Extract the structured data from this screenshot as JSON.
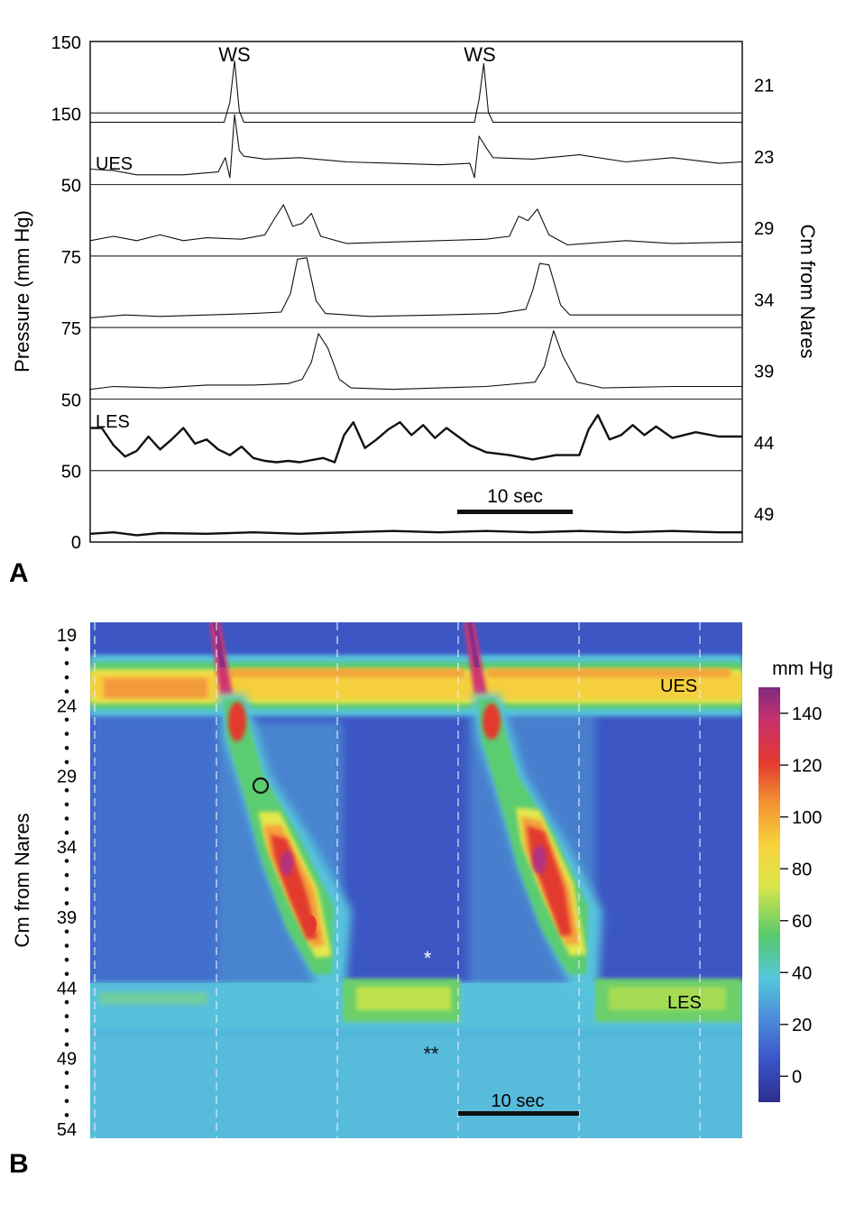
{
  "chart_data": [
    {
      "type": "line",
      "panel_label": "A",
      "ylabel": "Pressure (mm Hg)",
      "right_axis_label": "Cm from Nares",
      "annotations": [
        "WS",
        "WS"
      ],
      "scale_bar_label": "10 sec",
      "time_range_sec": [
        0,
        56
      ],
      "channels": [
        {
          "cm": "21",
          "baseline_label": "150",
          "tag": "",
          "series": [
            [
              0,
              2
            ],
            [
              11.5,
              2
            ],
            [
              12.0,
              30
            ],
            [
              12.4,
              88
            ],
            [
              12.8,
              18
            ],
            [
              13.2,
              2
            ],
            [
              33.0,
              2
            ],
            [
              33.4,
              34
            ],
            [
              33.8,
              84
            ],
            [
              34.2,
              16
            ],
            [
              34.6,
              2
            ],
            [
              56,
              2
            ]
          ]
        },
        {
          "cm": "23",
          "baseline_label": "150",
          "tag": "UES",
          "series": [
            [
              0,
              14
            ],
            [
              2,
              12
            ],
            [
              4,
              6
            ],
            [
              8,
              6
            ],
            [
              11,
              10
            ],
            [
              11.6,
              30
            ],
            [
              12.0,
              2
            ],
            [
              12.4,
              90
            ],
            [
              12.8,
              40
            ],
            [
              13.2,
              32
            ],
            [
              15,
              28
            ],
            [
              18,
              30
            ],
            [
              22,
              24
            ],
            [
              26,
              22
            ],
            [
              30,
              20
            ],
            [
              32.6,
              22
            ],
            [
              33.0,
              2
            ],
            [
              33.4,
              60
            ],
            [
              34.0,
              44
            ],
            [
              34.6,
              30
            ],
            [
              38,
              28
            ],
            [
              42,
              34
            ],
            [
              46,
              24
            ],
            [
              50,
              30
            ],
            [
              54,
              22
            ],
            [
              56,
              24
            ]
          ]
        },
        {
          "cm": "29",
          "baseline_label": "50",
          "tag": "",
          "series": [
            [
              0,
              14
            ],
            [
              2,
              20
            ],
            [
              4,
              14
            ],
            [
              6,
              22
            ],
            [
              8,
              14
            ],
            [
              10,
              18
            ],
            [
              13,
              16
            ],
            [
              15,
              22
            ],
            [
              15.8,
              44
            ],
            [
              16.6,
              64
            ],
            [
              17.4,
              34
            ],
            [
              18.2,
              38
            ],
            [
              19.0,
              52
            ],
            [
              19.8,
              20
            ],
            [
              22,
              10
            ],
            [
              26,
              12
            ],
            [
              30,
              14
            ],
            [
              34,
              16
            ],
            [
              36,
              20
            ],
            [
              36.8,
              48
            ],
            [
              37.6,
              42
            ],
            [
              38.4,
              58
            ],
            [
              39.4,
              22
            ],
            [
              41,
              8
            ],
            [
              46,
              14
            ],
            [
              50,
              10
            ],
            [
              56,
              12
            ]
          ]
        },
        {
          "cm": "34",
          "baseline_label": "75",
          "tag": "",
          "series": [
            [
              0,
              6
            ],
            [
              3,
              10
            ],
            [
              6,
              8
            ],
            [
              10,
              10
            ],
            [
              14,
              12
            ],
            [
              16.4,
              14
            ],
            [
              17.2,
              40
            ],
            [
              17.8,
              88
            ],
            [
              18.6,
              90
            ],
            [
              19.4,
              30
            ],
            [
              20.2,
              12
            ],
            [
              24,
              8
            ],
            [
              30,
              10
            ],
            [
              35,
              12
            ],
            [
              37.4,
              18
            ],
            [
              38.0,
              44
            ],
            [
              38.6,
              82
            ],
            [
              39.4,
              80
            ],
            [
              40.4,
              24
            ],
            [
              41.2,
              10
            ],
            [
              46,
              10
            ],
            [
              56,
              10
            ]
          ]
        },
        {
          "cm": "39",
          "baseline_label": "75",
          "tag": "",
          "series": [
            [
              0,
              6
            ],
            [
              2,
              10
            ],
            [
              6,
              8
            ],
            [
              10,
              12
            ],
            [
              14,
              12
            ],
            [
              17,
              14
            ],
            [
              18.2,
              20
            ],
            [
              19.0,
              44
            ],
            [
              19.6,
              84
            ],
            [
              20.4,
              64
            ],
            [
              21.4,
              20
            ],
            [
              22.4,
              8
            ],
            [
              26,
              6
            ],
            [
              30,
              8
            ],
            [
              34,
              10
            ],
            [
              38.2,
              16
            ],
            [
              39.0,
              38
            ],
            [
              39.8,
              88
            ],
            [
              40.6,
              52
            ],
            [
              41.8,
              16
            ],
            [
              44,
              8
            ],
            [
              50,
              10
            ],
            [
              56,
              10
            ]
          ]
        },
        {
          "cm": "44",
          "baseline_label": "50",
          "tag": "LES",
          "series": [
            [
              0,
              52
            ],
            [
              1,
              52
            ],
            [
              2,
              28
            ],
            [
              3,
              12
            ],
            [
              4,
              20
            ],
            [
              5,
              40
            ],
            [
              6,
              22
            ],
            [
              7,
              36
            ],
            [
              8,
              52
            ],
            [
              9,
              30
            ],
            [
              10,
              36
            ],
            [
              11,
              22
            ],
            [
              12,
              14
            ],
            [
              13,
              26
            ],
            [
              14,
              10
            ],
            [
              15,
              6
            ],
            [
              16,
              4
            ],
            [
              17,
              6
            ],
            [
              18,
              4
            ],
            [
              20,
              10
            ],
            [
              21,
              4
            ],
            [
              21.8,
              42
            ],
            [
              22.6,
              60
            ],
            [
              23.6,
              24
            ],
            [
              24.6,
              36
            ],
            [
              25.6,
              50
            ],
            [
              26.6,
              60
            ],
            [
              27.6,
              42
            ],
            [
              28.6,
              56
            ],
            [
              29.6,
              38
            ],
            [
              30.6,
              52
            ],
            [
              31.6,
              40
            ],
            [
              32.6,
              28
            ],
            [
              34,
              18
            ],
            [
              36,
              14
            ],
            [
              38,
              8
            ],
            [
              40,
              14
            ],
            [
              42,
              14
            ],
            [
              42.8,
              50
            ],
            [
              43.6,
              70
            ],
            [
              44.6,
              36
            ],
            [
              45.6,
              42
            ],
            [
              46.6,
              56
            ],
            [
              47.6,
              42
            ],
            [
              48.6,
              54
            ],
            [
              50,
              38
            ],
            [
              52,
              46
            ],
            [
              54,
              40
            ],
            [
              56,
              40
            ]
          ]
        },
        {
          "cm": "49",
          "baseline_label": "50",
          "tag": "",
          "series": [
            [
              0,
              4
            ],
            [
              2,
              6
            ],
            [
              4,
              2
            ],
            [
              6,
              5
            ],
            [
              10,
              4
            ],
            [
              14,
              6
            ],
            [
              18,
              4
            ],
            [
              22,
              6
            ],
            [
              26,
              8
            ],
            [
              30,
              6
            ],
            [
              34,
              8
            ],
            [
              38,
              6
            ],
            [
              42,
              8
            ],
            [
              46,
              6
            ],
            [
              50,
              8
            ],
            [
              54,
              6
            ],
            [
              56,
              6
            ]
          ]
        }
      ],
      "bottom_tick": "0"
    },
    {
      "type": "heatmap",
      "panel_label": "B",
      "ylabel": "Cm from Nares",
      "y_ticks": [
        "19",
        "24",
        "29",
        "34",
        "39",
        "44",
        "49",
        "54"
      ],
      "ylim": [
        19,
        54
      ],
      "colorbar_label": "mm Hg",
      "colorbar_ticks": [
        "140",
        "120",
        "100",
        "80",
        "60",
        "40",
        "20",
        "0"
      ],
      "colorbar_range": [
        -10,
        150
      ],
      "annotations": [
        "UES",
        "LES",
        "*",
        "**"
      ],
      "scale_bar_label": "10 sec",
      "time_range_sec": [
        0,
        56
      ],
      "swallow_onsets_sec": [
        10.5,
        32.5
      ],
      "ues_band_cm": [
        22,
        25
      ],
      "les_band_cm": [
        43.5,
        46.5
      ],
      "peak_pressure_mmHg": 140
    }
  ],
  "labels": {
    "panel_a": "A",
    "panel_b": "B",
    "ws": "WS",
    "ues": "UES",
    "les": "LES",
    "star1": "*",
    "star2": "**",
    "circle": "o"
  }
}
